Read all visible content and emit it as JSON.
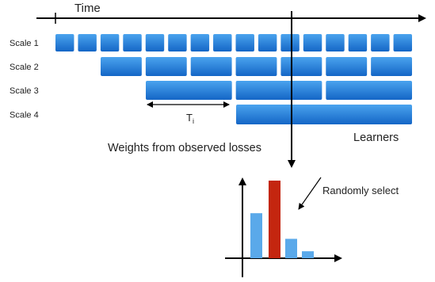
{
  "time_label": "Time",
  "scales": [
    {
      "label": "Scale 1",
      "intervals": 16
    },
    {
      "label": "Scale 2",
      "intervals": 7
    },
    {
      "label": "Scale 3",
      "intervals": 3
    },
    {
      "label": "Scale 4",
      "intervals": 1
    }
  ],
  "interval_symbol": "T",
  "interval_subscript": "i",
  "learners_label": "Learners",
  "weights_label": "Weights from observed losses",
  "select_label": "Randomly select",
  "colors": {
    "block_top": "#4aa3ee",
    "block_bottom": "#1466c6",
    "bar_blue": "#5aa9ea",
    "bar_selected": "#c4260f",
    "axis": "#000000"
  },
  "weights": [
    0.58,
    1.0,
    0.25,
    0.09
  ],
  "selected_index": 1
}
